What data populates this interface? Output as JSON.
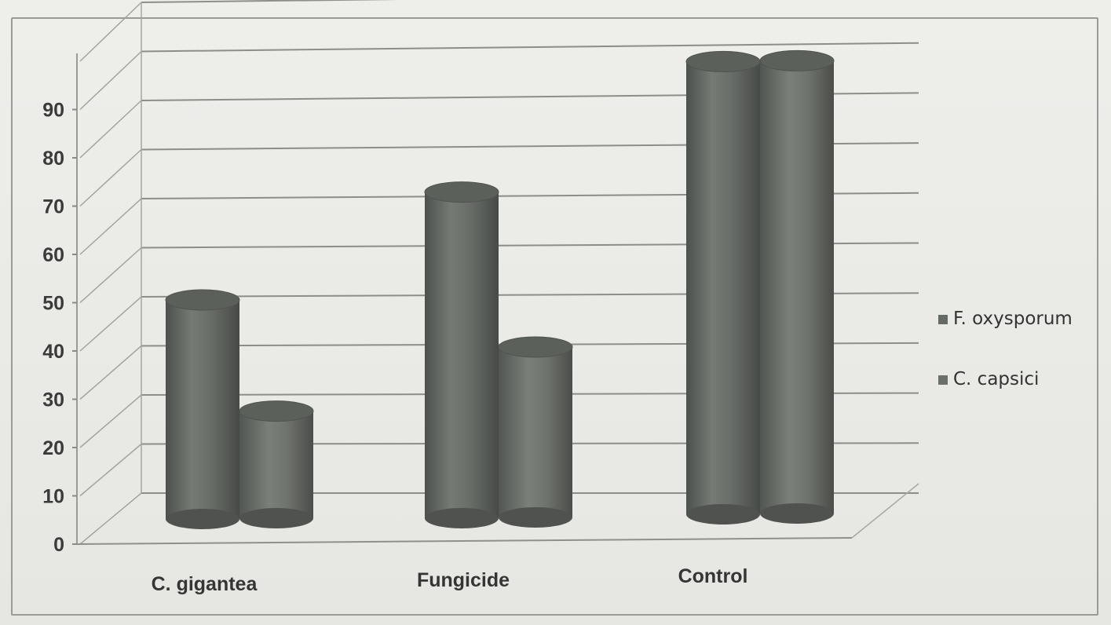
{
  "chart_data": {
    "type": "bar",
    "style": "3d-cylinder",
    "categories": [
      "C. gigantea",
      "Fungicide",
      "Control"
    ],
    "series": [
      {
        "name": "F. oxysporum",
        "values": [
          45,
          67,
          93
        ],
        "color": "#666a66"
      },
      {
        "name": "C. capsici",
        "values": [
          22,
          35,
          93
        ],
        "color": "#6c706b"
      }
    ],
    "y_ticks": [
      "0",
      "10",
      "20",
      "30",
      "40",
      "50",
      "60",
      "70",
      "80",
      "90"
    ],
    "ylim": [
      0,
      100
    ],
    "grid": true,
    "legend_position": "right"
  }
}
